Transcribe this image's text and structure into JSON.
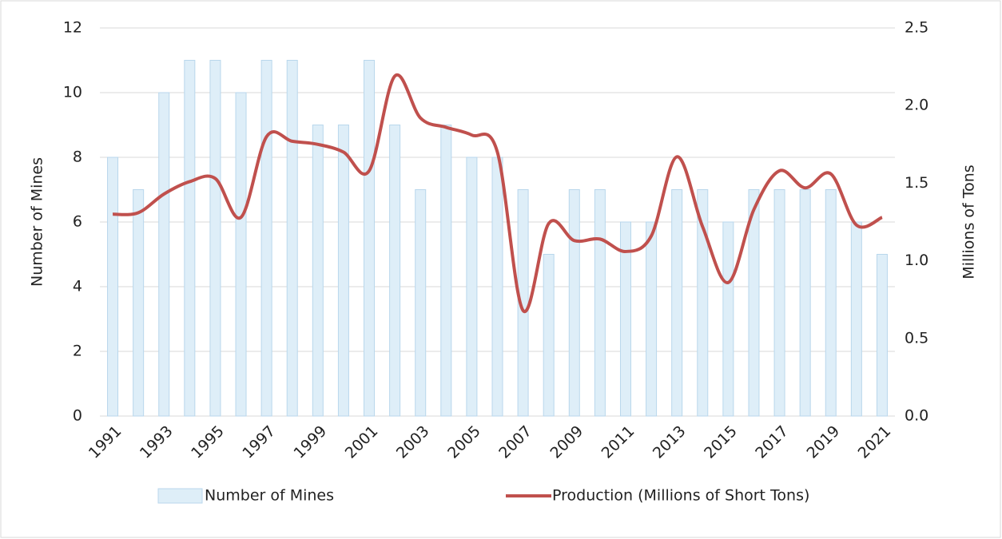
{
  "chart_data": {
    "type": "bar",
    "categories": [
      "1991",
      null,
      "1993",
      null,
      "1995",
      null,
      "1997",
      null,
      "1999",
      null,
      "2001",
      null,
      "2003",
      null,
      "2005",
      null,
      "2007",
      null,
      "2009",
      null,
      "2011",
      null,
      "2013",
      null,
      "2015",
      null,
      "2017",
      null,
      "2019",
      null,
      "2021"
    ],
    "series": [
      {
        "name": "Number of Mines",
        "type": "bar",
        "color": "#deeef8",
        "stroke": "#b9d7ec",
        "values": [
          8,
          7,
          10,
          11,
          11,
          10,
          11,
          11,
          9,
          9,
          11,
          9,
          7,
          9,
          8,
          8,
          7,
          5,
          7,
          7,
          6,
          6,
          7,
          7,
          6,
          7,
          7,
          7,
          7,
          6,
          5
        ]
      },
      {
        "name": "Production (Millions of Short Tons)",
        "type": "line",
        "axis": "y2",
        "color": "#c0504d",
        "values": [
          1.3,
          1.31,
          1.43,
          1.51,
          1.53,
          1.28,
          1.8,
          1.77,
          1.75,
          1.7,
          1.58,
          2.19,
          1.92,
          1.86,
          1.81,
          1.7,
          0.68,
          1.24,
          1.13,
          1.14,
          1.06,
          1.16,
          1.67,
          1.22,
          0.86,
          1.33,
          1.58,
          1.47,
          1.56,
          1.23,
          1.28
        ]
      }
    ],
    "ylabel": "Number of Mines",
    "y2label": "Millions of Tons",
    "ylim": [
      0,
      12
    ],
    "yticks": [
      0,
      2,
      4,
      6,
      8,
      10,
      12
    ],
    "y2lim": [
      0,
      2.5
    ],
    "y2ticks": [
      {
        "value": 0,
        "label": "0.0"
      },
      {
        "value": 0.5,
        "label": "0.5"
      },
      {
        "value": 1,
        "label": "1.0"
      },
      {
        "value": 1.5,
        "label": "1.5"
      },
      {
        "value": 2,
        "label": "2.0"
      },
      {
        "value": 2.5,
        "label": "2.5"
      }
    ],
    "grid": true,
    "legend": "bottom"
  }
}
